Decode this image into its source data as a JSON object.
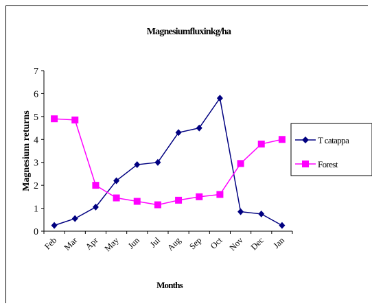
{
  "chart_data": {
    "type": "line",
    "title": "Magnesiumfluxinkg/ha",
    "xlabel": "Months",
    "ylabel": "Magnesium returns",
    "categories": [
      "Feb",
      "Mar",
      "Apr",
      "May",
      "Jun",
      "Jul",
      "Aug",
      "Sep",
      "Oct",
      "Nov",
      "Dec",
      "Jan"
    ],
    "ylim": [
      0,
      7
    ],
    "yticks": [
      "0",
      "1",
      "2",
      "3",
      "4",
      "5",
      "6",
      "7"
    ],
    "grid": false,
    "legend_position": "right",
    "series": [
      {
        "name": "T catappa",
        "color": "#000080",
        "marker": "diamond",
        "values": [
          0.25,
          0.55,
          1.05,
          2.2,
          2.9,
          3.0,
          4.3,
          4.5,
          5.8,
          0.85,
          0.75,
          0.25
        ]
      },
      {
        "name": "Forest",
        "color": "#FF00FF",
        "marker": "square",
        "values": [
          4.9,
          4.85,
          2.0,
          1.45,
          1.3,
          1.15,
          1.35,
          1.5,
          1.6,
          2.95,
          3.8,
          4.0
        ]
      }
    ]
  }
}
